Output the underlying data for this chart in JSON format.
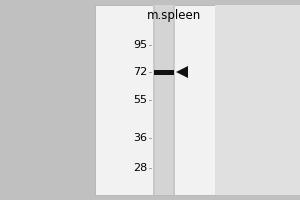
{
  "bg_color": "#c0c0c0",
  "panel_color": "#f0f0f0",
  "panel_border_color": "#888888",
  "lane_color": "#c8c8c8",
  "lane_center_color": "#d8d8d8",
  "right_bg_color": "#e8e8e8",
  "mw_markers": [
    95,
    72,
    55,
    36,
    28
  ],
  "band_mw": 72,
  "band_color": "#111111",
  "arrow_color": "#111111",
  "label_text": "m.spleen",
  "label_fontsize": 8.5,
  "mw_fontsize": 8,
  "title_color": "#222222"
}
